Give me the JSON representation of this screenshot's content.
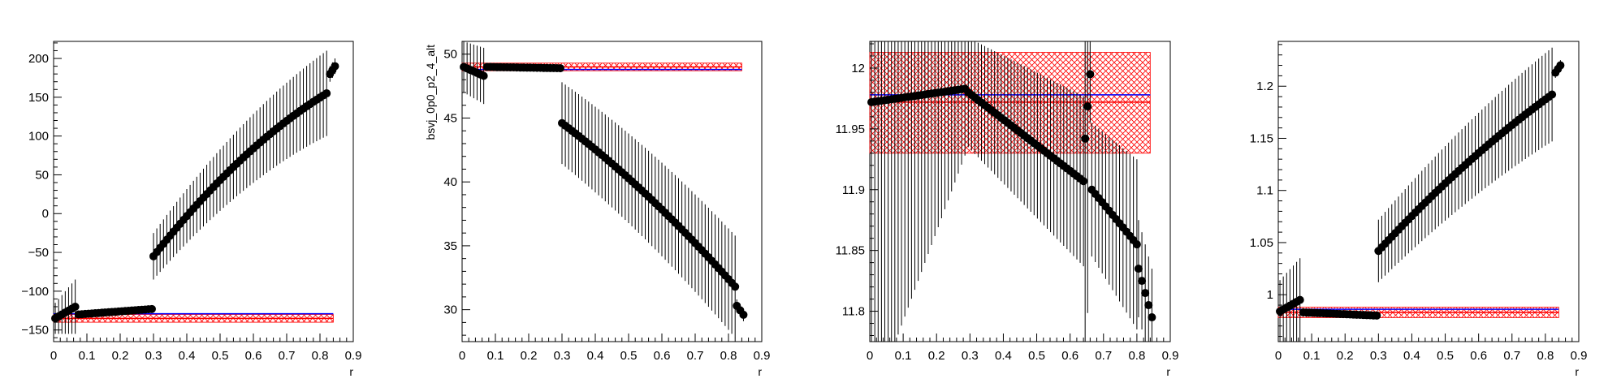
{
  "chart_data": [
    {
      "type": "scatter",
      "title": "",
      "xlabel": "r",
      "ylabel": "",
      "xlim": [
        0,
        0.9
      ],
      "ylim": [
        -165,
        222
      ],
      "x_ticks": [
        0,
        0.1,
        0.2,
        0.3,
        0.4,
        0.5,
        0.6,
        0.7,
        0.8,
        0.9
      ],
      "x_tick_labels": [
        "0",
        "0.1",
        "0.2",
        "0.3",
        "0.4",
        "0.5",
        "0.6",
        "0.7",
        "0.8",
        "0.9"
      ],
      "y_ticks": [
        -150,
        -100,
        -50,
        0,
        50,
        100,
        150,
        200
      ],
      "y_tick_labels": [
        "−150",
        "−100",
        "−50",
        "0",
        "50",
        "100",
        "150",
        "200"
      ],
      "grid": false,
      "segments": [
        {
          "x_start": 0.005,
          "x_end": 0.065,
          "y_start": -135,
          "y_end": -120,
          "err_start": 20,
          "err_end": 35,
          "points": 7
        },
        {
          "x_start": 0.075,
          "x_end": 0.295,
          "y_start": -130,
          "y_end": -123,
          "err_start": 3,
          "err_end": 4,
          "points": 23
        },
        {
          "x_start": 0.3,
          "x_end": 0.82,
          "y_start": -55,
          "y_end": 155,
          "err_start": 30,
          "err_end": 55,
          "points": 53,
          "curve": 0.35
        },
        {
          "x_start": 0.83,
          "x_end": 0.845,
          "y_start": 180,
          "y_end": 190,
          "err_start": 10,
          "err_end": 10,
          "points": 3
        }
      ],
      "red_band": {
        "x": [
          0.0,
          0.84
        ],
        "center": -135,
        "low": -140,
        "high": -130,
        "color": "#ff0000"
      },
      "blue_line": {
        "x": [
          0.0,
          0.84
        ],
        "value": -129,
        "color": "#0000ff"
      }
    },
    {
      "type": "scatter",
      "title": "",
      "xlabel": "r",
      "ylabel": "bsvj_0p0_p2_4_alt",
      "xlim": [
        0,
        0.9
      ],
      "ylim": [
        27.5,
        51
      ],
      "x_ticks": [
        0,
        0.1,
        0.2,
        0.3,
        0.4,
        0.5,
        0.6,
        0.7,
        0.8,
        0.9
      ],
      "x_tick_labels": [
        "0",
        "0.1",
        "0.2",
        "0.3",
        "0.4",
        "0.5",
        "0.6",
        "0.7",
        "0.8",
        "0.9"
      ],
      "y_ticks": [
        30,
        35,
        40,
        45,
        50
      ],
      "y_tick_labels": [
        "30",
        "35",
        "40",
        "45",
        "50"
      ],
      "grid": false,
      "segments": [
        {
          "x_start": 0.005,
          "x_end": 0.065,
          "y_start": 49,
          "y_end": 48.3,
          "err_start": 2,
          "err_end": 2.2,
          "points": 7
        },
        {
          "x_start": 0.075,
          "x_end": 0.295,
          "y_start": 49,
          "y_end": 48.9,
          "err_start": 0.1,
          "err_end": 0.1,
          "points": 23
        },
        {
          "x_start": 0.3,
          "x_end": 0.82,
          "y_start": 44.6,
          "y_end": 31.8,
          "err_start": 3.2,
          "err_end": 4,
          "points": 53,
          "curve": -0.2
        },
        {
          "x_start": 0.825,
          "x_end": 0.845,
          "y_start": 30.3,
          "y_end": 29.6,
          "err_start": 0.5,
          "err_end": 0.5,
          "points": 3
        }
      ],
      "red_band": {
        "x": [
          0.0,
          0.84
        ],
        "center": 49,
        "low": 48.7,
        "high": 49.3,
        "color": "#ff0000"
      },
      "blue_line": {
        "x": [
          0.0,
          0.84
        ],
        "value": 48.8,
        "color": "#0000ff"
      }
    },
    {
      "type": "scatter",
      "title": "",
      "xlabel": "r",
      "ylabel": "",
      "xlim": [
        0,
        0.9
      ],
      "ylim": [
        11.775,
        12.022
      ],
      "x_ticks": [
        0,
        0.1,
        0.2,
        0.3,
        0.4,
        0.5,
        0.6,
        0.7,
        0.8,
        0.9
      ],
      "x_tick_labels": [
        "0",
        "0.1",
        "0.2",
        "0.3",
        "0.4",
        "0.5",
        "0.6",
        "0.7",
        "0.8",
        "0.9"
      ],
      "y_ticks": [
        11.8,
        11.85,
        11.9,
        11.95,
        12
      ],
      "y_tick_labels": [
        "11.8",
        "11.85",
        "11.9",
        "11.95",
        "12"
      ],
      "grid": false,
      "segments": [
        {
          "x_start": 0.005,
          "x_end": 0.285,
          "y_start": 11.972,
          "y_end": 11.983,
          "err_start": 0.25,
          "err_end": 0.055,
          "points": 29
        },
        {
          "x_start": 0.295,
          "x_end": 0.64,
          "y_start": 11.98,
          "y_end": 11.907,
          "err_start": 0.045,
          "err_end": 0.07,
          "points": 36
        },
        {
          "x_start": 0.645,
          "x_end": 0.66,
          "y_start": 11.942,
          "y_end": 11.995,
          "err_start": 0.3,
          "err_end": 0.04,
          "points": 3
        },
        {
          "x_start": 0.665,
          "x_end": 0.8,
          "y_start": 11.9,
          "y_end": 11.855,
          "err_start": 0.055,
          "err_end": 0.07,
          "points": 14
        },
        {
          "x_start": 0.805,
          "x_end": 0.845,
          "y_start": 11.835,
          "y_end": 11.795,
          "err_start": 0.04,
          "err_end": 0.04,
          "points": 5
        }
      ],
      "red_band": {
        "x": [
          0.0,
          0.84
        ],
        "center": 11.972,
        "low": 11.93,
        "high": 12.013,
        "color": "#ff0000"
      },
      "blue_line": {
        "x": [
          0.0,
          0.84
        ],
        "value": 11.978,
        "color": "#0000ff"
      }
    },
    {
      "type": "scatter",
      "title": "",
      "xlabel": "r",
      "ylabel": "",
      "xlim": [
        0,
        0.9
      ],
      "ylim": [
        0.955,
        1.243
      ],
      "x_ticks": [
        0,
        0.1,
        0.2,
        0.3,
        0.4,
        0.5,
        0.6,
        0.7,
        0.8,
        0.9
      ],
      "x_tick_labels": [
        "0",
        "0.1",
        "0.2",
        "0.3",
        "0.4",
        "0.5",
        "0.6",
        "0.7",
        "0.8",
        "0.9"
      ],
      "y_ticks": [
        1,
        1.05,
        1.1,
        1.15,
        1.2
      ],
      "y_tick_labels": [
        "1",
        "1.05",
        "1.1",
        "1.15",
        "1.2"
      ],
      "grid": false,
      "segments": [
        {
          "x_start": 0.005,
          "x_end": 0.065,
          "y_start": 0.984,
          "y_end": 0.995,
          "err_start": 0.03,
          "err_end": 0.04,
          "points": 7
        },
        {
          "x_start": 0.075,
          "x_end": 0.295,
          "y_start": 0.983,
          "y_end": 0.98,
          "err_start": 0.002,
          "err_end": 0.002,
          "points": 23
        },
        {
          "x_start": 0.3,
          "x_end": 0.82,
          "y_start": 1.042,
          "y_end": 1.192,
          "err_start": 0.03,
          "err_end": 0.045,
          "points": 53,
          "curve": 0.2
        },
        {
          "x_start": 0.83,
          "x_end": 0.845,
          "y_start": 1.213,
          "y_end": 1.22,
          "err_start": 0.005,
          "err_end": 0.005,
          "points": 3
        }
      ],
      "red_band": {
        "x": [
          0.0,
          0.84
        ],
        "center": 0.983,
        "low": 0.978,
        "high": 0.988,
        "color": "#ff0000"
      },
      "blue_line": {
        "x": [
          0.0,
          0.84
        ],
        "value": 0.986,
        "color": "#0000ff"
      }
    }
  ]
}
